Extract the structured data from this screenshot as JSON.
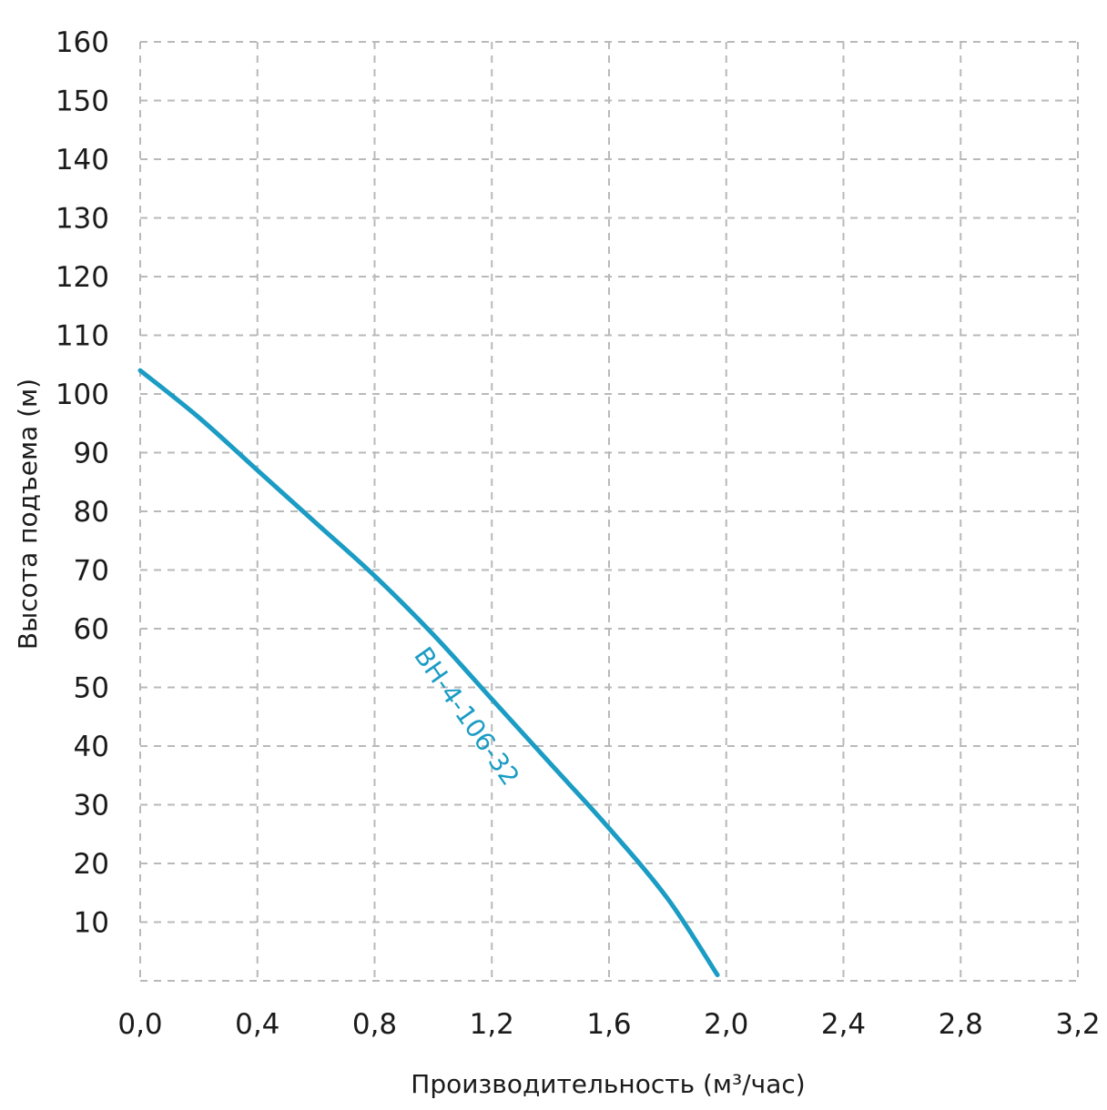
{
  "chart_data": {
    "type": "line",
    "title": "",
    "xlabel": "Производительность (м³/час)",
    "ylabel": "Высота подъема (м)",
    "xlim": [
      0,
      3.2
    ],
    "ylim": [
      0,
      160
    ],
    "x_ticks": [
      "0,0",
      "0,4",
      "0,8",
      "1,2",
      "1,6",
      "2,0",
      "2,4",
      "2,8",
      "3,2"
    ],
    "y_ticks": [
      "10",
      "20",
      "30",
      "40",
      "50",
      "60",
      "70",
      "80",
      "90",
      "100",
      "110",
      "120",
      "130",
      "140",
      "150",
      "160"
    ],
    "grid": true,
    "series": [
      {
        "name": "BH-4-106-32",
        "color": "#1a9cc4",
        "x": [
          0.0,
          0.2,
          0.4,
          0.6,
          0.8,
          1.0,
          1.2,
          1.4,
          1.6,
          1.8,
          1.97
        ],
        "y": [
          104,
          96,
          87,
          78,
          69,
          59,
          48,
          37,
          26,
          14,
          1
        ]
      }
    ]
  }
}
